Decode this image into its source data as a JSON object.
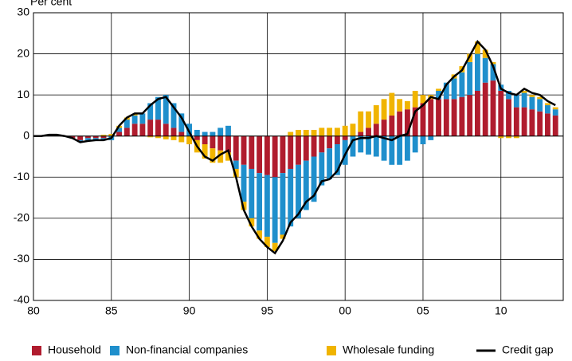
{
  "chart_data": {
    "type": "bar",
    "y_label": "Per cent",
    "x": [
      1980,
      1980.5,
      1981,
      1981.5,
      1982,
      1982.5,
      1983,
      1983.5,
      1984,
      1984.5,
      1985,
      1985.5,
      1986,
      1986.5,
      1987,
      1987.5,
      1988,
      1988.5,
      1989,
      1989.5,
      1990,
      1990.5,
      1991,
      1991.5,
      1992,
      1992.5,
      1993,
      1993.5,
      1994,
      1994.5,
      1995,
      1995.5,
      1996,
      1996.5,
      1997,
      1997.5,
      1998,
      1998.5,
      1999,
      1999.5,
      2000,
      2000.5,
      2001,
      2001.5,
      2002,
      2002.5,
      2003,
      2003.5,
      2004,
      2004.5,
      2005,
      2005.5,
      2006,
      2006.5,
      2007,
      2007.5,
      2008,
      2008.5,
      2009,
      2009.5,
      2010,
      2010.5,
      2011,
      2011.5,
      2012,
      2012.5,
      2013,
      2013.5
    ],
    "series": [
      {
        "name": "Household",
        "color": "#b01c2e",
        "values": [
          0,
          0,
          0,
          0,
          0,
          -0.5,
          -1,
          -0.5,
          -0.5,
          -0.5,
          0,
          1,
          2,
          3,
          3,
          4,
          4,
          3,
          2,
          1,
          0,
          -1,
          -2,
          -3,
          -3.5,
          -4,
          -6,
          -7,
          -8,
          -9,
          -9.5,
          -10,
          -9,
          -8,
          -7,
          -6,
          -5,
          -4,
          -3,
          -2,
          -1,
          0,
          1,
          2,
          3,
          4,
          5,
          6,
          6.5,
          7,
          8,
          9,
          9,
          9,
          9,
          9.5,
          10,
          11,
          13,
          13.5,
          11,
          9,
          7,
          7,
          6.5,
          6,
          5.5,
          5
        ]
      },
      {
        "name": "Non-financial companies",
        "color": "#1f8fcc",
        "values": [
          0,
          0,
          0,
          0,
          0,
          0,
          -0.5,
          -0.5,
          -0.5,
          -0.5,
          -1,
          1,
          2,
          2,
          2.5,
          4,
          5.5,
          7,
          6,
          4.5,
          3,
          1.5,
          1,
          1,
          2,
          2.5,
          -2,
          -9,
          -12,
          -14,
          -15,
          -16,
          -15,
          -14,
          -13,
          -12,
          -11,
          -8,
          -7.5,
          -7.5,
          -6,
          -5,
          -4,
          -4.5,
          -5,
          -6,
          -7,
          -7,
          -6,
          -4,
          -2,
          -1,
          2,
          4,
          5,
          6,
          8,
          9,
          6,
          4,
          1.5,
          2,
          3,
          3.5,
          3,
          3,
          2,
          1.5
        ]
      },
      {
        "name": "Wholesale funding",
        "color": "#f0b400",
        "values": [
          0,
          0,
          0,
          0,
          0,
          0,
          0,
          0,
          0,
          0.3,
          0.5,
          0.5,
          0.5,
          0.3,
          0,
          -0.3,
          -0.5,
          -0.8,
          -1,
          -1.5,
          -2,
          -3,
          -3.5,
          -3.5,
          -3,
          -2,
          -2,
          -2,
          -2,
          -2,
          -2.5,
          -2,
          -1,
          1,
          1.5,
          1.5,
          1.5,
          2,
          2,
          2,
          2.5,
          3,
          5,
          4,
          4.5,
          5,
          5.5,
          3,
          2,
          4,
          2,
          1,
          0.5,
          0,
          1,
          1.5,
          2,
          3,
          2,
          0.5,
          -0.5,
          -0.5,
          -0.5,
          0.5,
          0.5,
          0.5,
          0.5,
          0.5
        ]
      },
      {
        "name": "Credit gap",
        "color": "#000000",
        "type": "line",
        "values": [
          0,
          0,
          0.3,
          0.3,
          0,
          -0.5,
          -1.5,
          -1.2,
          -1,
          -1,
          -0.5,
          2.5,
          4.5,
          5.5,
          5.5,
          7.5,
          9,
          9.5,
          7,
          4.5,
          1,
          -2.5,
          -5,
          -6,
          -4.5,
          -3.5,
          -10,
          -18,
          -22,
          -25,
          -27,
          -28.5,
          -25.5,
          -21,
          -19,
          -16,
          -14.5,
          -11,
          -10.5,
          -8.5,
          -4.5,
          -1,
          -0.5,
          -0.5,
          0,
          -0.5,
          -1,
          0,
          0.5,
          6,
          7.5,
          9.5,
          9,
          12.5,
          14.5,
          16,
          19.5,
          23,
          21,
          17,
          11.5,
          10.5,
          10,
          11.5,
          10.5,
          10,
          8.5,
          7.5
        ]
      }
    ],
    "xlim": [
      1980,
      2014
    ],
    "xticks": [
      {
        "value": 1980,
        "label": "80"
      },
      {
        "value": 1985,
        "label": "85"
      },
      {
        "value": 1990,
        "label": "90"
      },
      {
        "value": 1995,
        "label": "95"
      },
      {
        "value": 2000,
        "label": "00"
      },
      {
        "value": 2005,
        "label": "05"
      },
      {
        "value": 2010,
        "label": "10"
      }
    ],
    "ylim": [
      -40,
      30
    ],
    "yticks": [
      -40,
      -30,
      -20,
      -10,
      0,
      10,
      20,
      30
    ],
    "grid": true
  }
}
